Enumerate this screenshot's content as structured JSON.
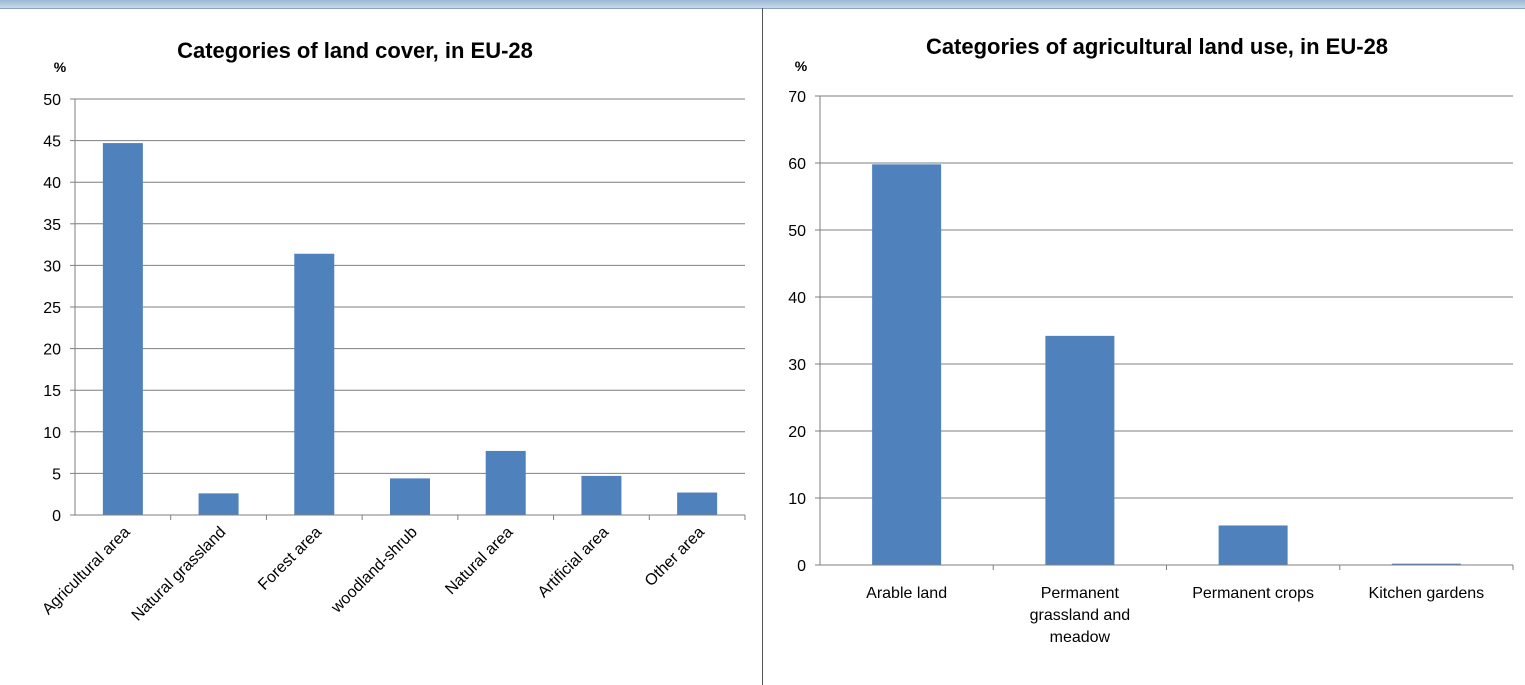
{
  "chart_data": [
    {
      "type": "bar",
      "title": "Categories of land cover, in EU-28",
      "ylabel": "%",
      "xlabel": "",
      "ylim": [
        0,
        50
      ],
      "yticks": [
        0,
        5,
        10,
        15,
        20,
        25,
        30,
        35,
        40,
        45,
        50
      ],
      "grid": true,
      "categories": [
        "Agricultural area",
        "Natural grassland",
        "Forest area",
        "woodland-shrub",
        "Natural area",
        "Artificial area",
        "Other area"
      ],
      "values": [
        44.7,
        2.6,
        31.4,
        4.4,
        7.7,
        4.7,
        2.7
      ],
      "bar_color": "#4f81bd"
    },
    {
      "type": "bar",
      "title": "Categories of agricultural land use, in EU-28",
      "ylabel": "%",
      "xlabel": "",
      "ylim": [
        0,
        70
      ],
      "yticks": [
        0,
        10,
        20,
        30,
        40,
        50,
        60,
        70
      ],
      "grid": true,
      "categories": [
        "Arable land",
        "Permanent grassland and meadow",
        "Permanent crops",
        "Kitchen gardens"
      ],
      "category_lines": [
        [
          "Arable land"
        ],
        [
          "Permanent",
          "grassland and",
          "meadow"
        ],
        [
          "Permanent crops"
        ],
        [
          "Kitchen gardens"
        ]
      ],
      "values": [
        59.8,
        34.2,
        5.9,
        0.2
      ],
      "bar_color": "#4f81bd"
    }
  ]
}
